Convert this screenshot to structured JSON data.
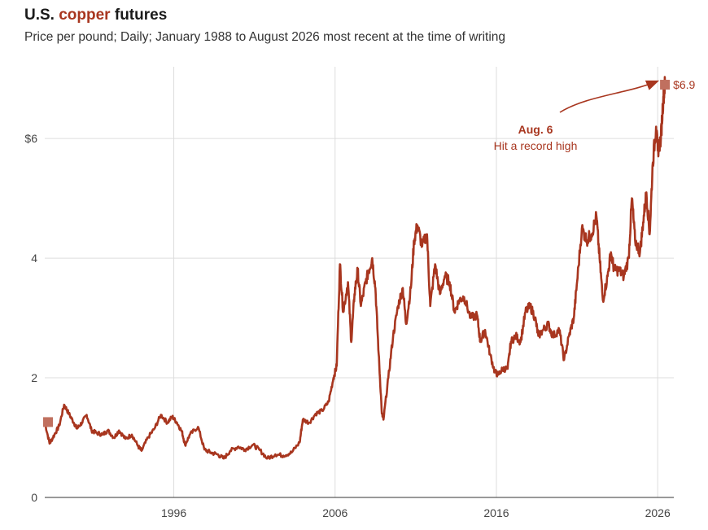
{
  "title": {
    "part1": "U.S. ",
    "accent": "copper",
    "part2": " futures"
  },
  "subtitle": "Price per pound; Daily; January 1988 to August 2026 most recent at the time of writing",
  "colors": {
    "line": "#a8361f",
    "marker": "#c0705f",
    "grid": "#dddddd",
    "axis": "#333333"
  },
  "annotation": {
    "date": "Aug. 6",
    "text": "Hit a record high",
    "end_label": "$6.9"
  },
  "chart_data": {
    "type": "line",
    "xlim": [
      1988.0,
      2027.0
    ],
    "ylim": [
      0,
      7.2
    ],
    "x_ticks": [
      1996,
      2006,
      2016,
      2026
    ],
    "x_tick_labels": [
      "1996",
      "2006",
      "2016",
      "2026"
    ],
    "y_ticks": [
      0,
      2,
      4,
      6
    ],
    "y_tick_labels": [
      "0",
      "2",
      "4",
      "$6"
    ],
    "grid": true,
    "series": [
      {
        "points": [
          [
            1988.0,
            1.26
          ],
          [
            1988.3,
            0.9
          ],
          [
            1988.6,
            1.05
          ],
          [
            1988.9,
            1.2
          ],
          [
            1989.2,
            1.55
          ],
          [
            1989.5,
            1.4
          ],
          [
            1989.8,
            1.25
          ],
          [
            1990.0,
            1.15
          ],
          [
            1990.3,
            1.25
          ],
          [
            1990.6,
            1.38
          ],
          [
            1990.9,
            1.12
          ],
          [
            1991.2,
            1.08
          ],
          [
            1991.6,
            1.05
          ],
          [
            1991.9,
            1.12
          ],
          [
            1992.3,
            1.0
          ],
          [
            1992.6,
            1.12
          ],
          [
            1993.0,
            0.98
          ],
          [
            1993.4,
            1.05
          ],
          [
            1993.8,
            0.85
          ],
          [
            1994.0,
            0.78
          ],
          [
            1994.4,
            1.0
          ],
          [
            1994.8,
            1.15
          ],
          [
            1995.2,
            1.38
          ],
          [
            1995.6,
            1.25
          ],
          [
            1995.9,
            1.35
          ],
          [
            1996.2,
            1.25
          ],
          [
            1996.5,
            1.1
          ],
          [
            1996.7,
            0.88
          ],
          [
            1997.0,
            1.05
          ],
          [
            1997.5,
            1.18
          ],
          [
            1997.9,
            0.8
          ],
          [
            1998.3,
            0.75
          ],
          [
            1998.7,
            0.72
          ],
          [
            1999.1,
            0.65
          ],
          [
            1999.5,
            0.78
          ],
          [
            2000.0,
            0.85
          ],
          [
            2000.4,
            0.8
          ],
          [
            2000.9,
            0.88
          ],
          [
            2001.3,
            0.8
          ],
          [
            2001.8,
            0.65
          ],
          [
            2002.3,
            0.72
          ],
          [
            2002.8,
            0.7
          ],
          [
            2003.3,
            0.75
          ],
          [
            2003.8,
            0.92
          ],
          [
            2004.0,
            1.3
          ],
          [
            2004.4,
            1.25
          ],
          [
            2004.8,
            1.4
          ],
          [
            2005.2,
            1.45
          ],
          [
            2005.6,
            1.6
          ],
          [
            2005.9,
            2.0
          ],
          [
            2006.1,
            2.2
          ],
          [
            2006.3,
            3.9
          ],
          [
            2006.5,
            3.1
          ],
          [
            2006.8,
            3.6
          ],
          [
            2007.0,
            2.6
          ],
          [
            2007.2,
            3.4
          ],
          [
            2007.4,
            3.8
          ],
          [
            2007.6,
            3.2
          ],
          [
            2007.9,
            3.6
          ],
          [
            2008.1,
            3.8
          ],
          [
            2008.3,
            4.0
          ],
          [
            2008.5,
            3.5
          ],
          [
            2008.7,
            2.4
          ],
          [
            2008.9,
            1.4
          ],
          [
            2009.0,
            1.3
          ],
          [
            2009.3,
            2.0
          ],
          [
            2009.6,
            2.7
          ],
          [
            2009.9,
            3.2
          ],
          [
            2010.2,
            3.5
          ],
          [
            2010.4,
            2.9
          ],
          [
            2010.7,
            3.5
          ],
          [
            2010.9,
            4.3
          ],
          [
            2011.1,
            4.55
          ],
          [
            2011.4,
            4.2
          ],
          [
            2011.7,
            4.4
          ],
          [
            2011.9,
            3.2
          ],
          [
            2012.2,
            3.9
          ],
          [
            2012.5,
            3.4
          ],
          [
            2012.8,
            3.7
          ],
          [
            2013.1,
            3.6
          ],
          [
            2013.4,
            3.1
          ],
          [
            2013.7,
            3.3
          ],
          [
            2014.0,
            3.35
          ],
          [
            2014.4,
            3.0
          ],
          [
            2014.8,
            3.05
          ],
          [
            2015.0,
            2.6
          ],
          [
            2015.3,
            2.8
          ],
          [
            2015.6,
            2.4
          ],
          [
            2015.9,
            2.1
          ],
          [
            2016.1,
            2.05
          ],
          [
            2016.4,
            2.15
          ],
          [
            2016.7,
            2.15
          ],
          [
            2016.9,
            2.6
          ],
          [
            2017.2,
            2.7
          ],
          [
            2017.5,
            2.6
          ],
          [
            2017.8,
            3.1
          ],
          [
            2018.1,
            3.2
          ],
          [
            2018.4,
            3.0
          ],
          [
            2018.6,
            2.7
          ],
          [
            2018.9,
            2.8
          ],
          [
            2019.2,
            2.9
          ],
          [
            2019.5,
            2.7
          ],
          [
            2019.9,
            2.8
          ],
          [
            2020.2,
            2.3
          ],
          [
            2020.5,
            2.7
          ],
          [
            2020.8,
            3.0
          ],
          [
            2021.0,
            3.6
          ],
          [
            2021.3,
            4.5
          ],
          [
            2021.6,
            4.3
          ],
          [
            2021.9,
            4.4
          ],
          [
            2022.2,
            4.7
          ],
          [
            2022.4,
            4.0
          ],
          [
            2022.6,
            3.3
          ],
          [
            2022.9,
            3.7
          ],
          [
            2023.1,
            4.1
          ],
          [
            2023.3,
            3.8
          ],
          [
            2023.6,
            3.8
          ],
          [
            2023.9,
            3.7
          ],
          [
            2024.2,
            4.0
          ],
          [
            2024.4,
            5.0
          ],
          [
            2024.6,
            4.3
          ],
          [
            2024.9,
            4.1
          ],
          [
            2025.1,
            4.6
          ],
          [
            2025.3,
            5.1
          ],
          [
            2025.5,
            4.4
          ],
          [
            2025.7,
            5.6
          ],
          [
            2025.9,
            6.2
          ],
          [
            2026.0,
            5.8
          ],
          [
            2026.2,
            6.0
          ],
          [
            2026.35,
            6.7
          ],
          [
            2026.45,
            6.9
          ]
        ]
      }
    ],
    "start_marker": [
      1988.0,
      1.26
    ],
    "end_marker": [
      2026.45,
      6.9
    ]
  }
}
